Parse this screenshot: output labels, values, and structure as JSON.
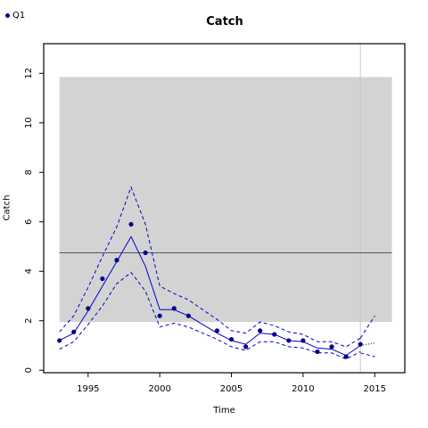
{
  "legend": {
    "label": "Q1",
    "color": "#00008B"
  },
  "chart_data": {
    "type": "line",
    "title": "Catch",
    "xlabel": "Time",
    "ylabel": "Catch",
    "xlim": [
      1991.9,
      2017.1
    ],
    "ylim": [
      -0.1,
      13.2
    ],
    "xticks": [
      1995,
      2000,
      2005,
      2010,
      2015
    ],
    "yticks": [
      0,
      2,
      4,
      6,
      8,
      10,
      12
    ],
    "grid": false,
    "legend_position": "top-left",
    "colors": {
      "observed": "#00008B",
      "fit": "#0000CD",
      "band": "#D3D3D3",
      "reference_line": "#555555",
      "vline": "#C8C8C8",
      "projection": "#00008B"
    },
    "shaded_band": {
      "x": [
        1993,
        2016.2
      ],
      "y": [
        1.95,
        11.85
      ]
    },
    "reference_line_y": 4.75,
    "vline_x": 2014,
    "observed": {
      "name": "Q1",
      "x": [
        1993,
        1994,
        1995,
        1996,
        1997,
        1998,
        1999,
        2000,
        2001,
        2002,
        2004,
        2005,
        2006,
        2007,
        2008,
        2009,
        2010,
        2011,
        2012,
        2013,
        2014
      ],
      "y": [
        1.2,
        1.55,
        2.5,
        3.7,
        4.45,
        5.9,
        4.75,
        2.2,
        2.5,
        2.2,
        1.6,
        1.25,
        0.95,
        1.6,
        1.45,
        1.2,
        1.2,
        0.75,
        0.95,
        0.55,
        1.05
      ]
    },
    "fit": {
      "x": [
        1993,
        1994,
        1995,
        1996,
        1997,
        1998,
        1999,
        2000,
        2001,
        2002,
        2003,
        2004,
        2005,
        2006,
        2007,
        2008,
        2009,
        2010,
        2011,
        2012,
        2013,
        2014
      ],
      "median": [
        1.2,
        1.5,
        2.4,
        3.4,
        4.4,
        5.4,
        4.2,
        2.45,
        2.45,
        2.2,
        1.85,
        1.5,
        1.2,
        1.05,
        1.5,
        1.45,
        1.2,
        1.15,
        0.9,
        0.85,
        0.6,
        1.0
      ],
      "lower": [
        0.85,
        1.15,
        1.85,
        2.6,
        3.5,
        3.95,
        3.2,
        1.75,
        1.9,
        1.75,
        1.5,
        1.25,
        0.95,
        0.8,
        1.15,
        1.15,
        0.95,
        0.9,
        0.7,
        0.7,
        0.45,
        0.75
      ],
      "upper": [
        1.55,
        2.2,
        3.35,
        4.6,
        5.8,
        7.4,
        5.9,
        3.4,
        3.1,
        2.85,
        2.45,
        2.05,
        1.6,
        1.5,
        1.95,
        1.8,
        1.55,
        1.45,
        1.15,
        1.15,
        0.95,
        1.3
      ]
    },
    "projection": {
      "x": [
        2014,
        2015
      ],
      "median": [
        1.0,
        1.1
      ],
      "lower": [
        0.7,
        0.55
      ],
      "upper": [
        1.3,
        2.2
      ]
    }
  }
}
